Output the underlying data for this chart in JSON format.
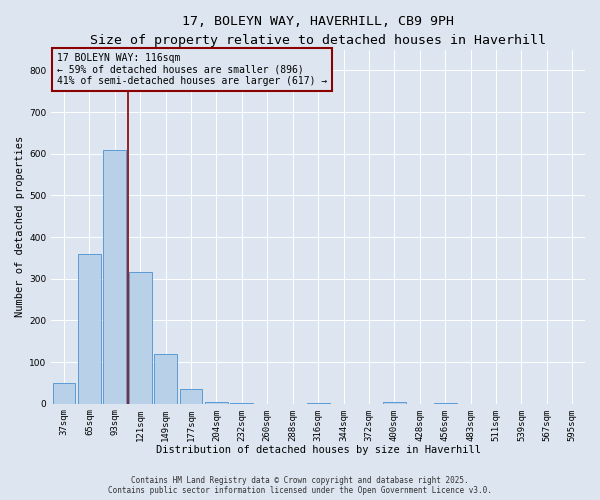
{
  "title_line1": "17, BOLEYN WAY, HAVERHILL, CB9 9PH",
  "title_line2": "Size of property relative to detached houses in Haverhill",
  "xlabel": "Distribution of detached houses by size in Haverhill",
  "ylabel": "Number of detached properties",
  "categories": [
    "37sqm",
    "65sqm",
    "93sqm",
    "121sqm",
    "149sqm",
    "177sqm",
    "204sqm",
    "232sqm",
    "260sqm",
    "288sqm",
    "316sqm",
    "344sqm",
    "372sqm",
    "400sqm",
    "428sqm",
    "456sqm",
    "483sqm",
    "511sqm",
    "539sqm",
    "567sqm",
    "595sqm"
  ],
  "values": [
    50,
    360,
    610,
    315,
    120,
    35,
    5,
    2,
    0,
    0,
    2,
    0,
    0,
    5,
    0,
    2,
    0,
    0,
    0,
    0,
    0
  ],
  "bar_color": "#b8d0e8",
  "bar_edge_color": "#5b9bd5",
  "ylim": [
    0,
    850
  ],
  "yticks": [
    0,
    100,
    200,
    300,
    400,
    500,
    600,
    700,
    800
  ],
  "vline_color": "#8b0000",
  "annotation_line1": "17 BOLEYN WAY: 116sqm",
  "annotation_line2": "← 59% of detached houses are smaller (896)",
  "annotation_line3": "41% of semi-detached houses are larger (617) →",
  "background_color": "#dde6f0",
  "grid_color": "#ffffff",
  "footer_line1": "Contains HM Land Registry data © Crown copyright and database right 2025.",
  "footer_line2": "Contains public sector information licensed under the Open Government Licence v3.0.",
  "title_fontsize": 9.5,
  "subtitle_fontsize": 8,
  "axis_label_fontsize": 7.5,
  "tick_fontsize": 6.5,
  "annotation_fontsize": 7,
  "footer_fontsize": 5.5
}
